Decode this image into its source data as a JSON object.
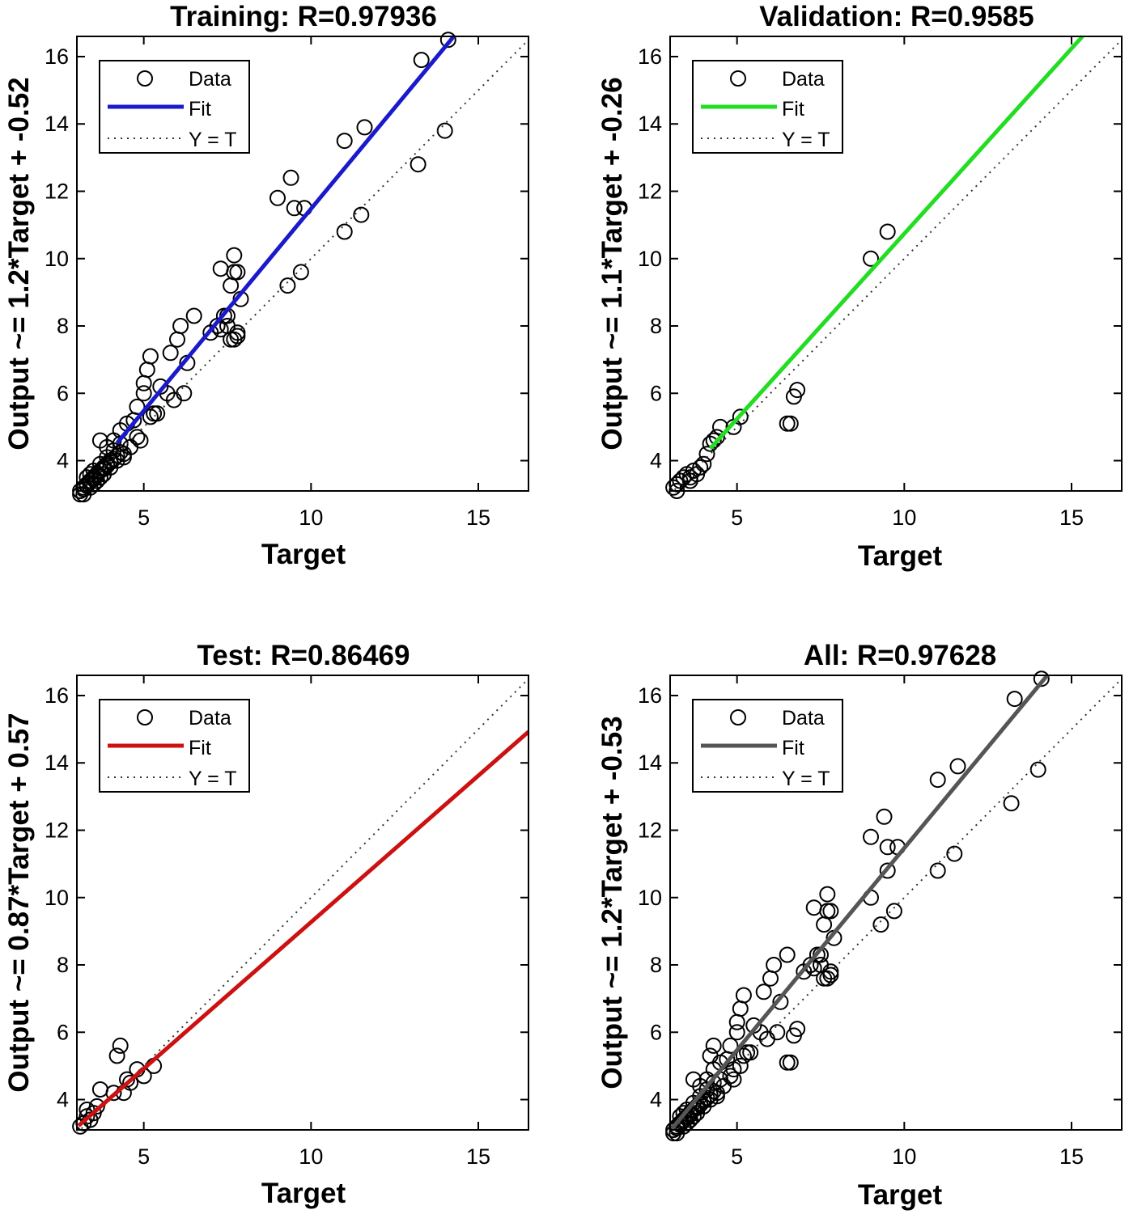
{
  "chart_data": [
    {
      "type": "scatter",
      "title": "Training: R=0.97936",
      "xlabel": "Target",
      "ylabel": "Output ~= 1.2*Target + -0.52",
      "xlim": [
        3,
        16.5
      ],
      "ylim": [
        3.1,
        16.6
      ],
      "xticks": [
        5,
        10,
        15
      ],
      "yticks": [
        4,
        6,
        8,
        10,
        12,
        14,
        16
      ],
      "grid": false,
      "legend": {
        "position": "top-left",
        "entries": [
          "Data",
          "Fit",
          "Y = T"
        ]
      },
      "fit": {
        "slope": 1.2,
        "intercept": -0.52,
        "color": "#1a1acc",
        "x_start": 4.2,
        "x_end": 14.5
      },
      "series": [
        {
          "name": "Data",
          "x": [
            3.1,
            3.2,
            3.3,
            3.4,
            3.5,
            3.6,
            3.7,
            3.8,
            3.9,
            4.0,
            3.3,
            3.5,
            3.7,
            3.9,
            4.1,
            4.3,
            3.6,
            3.8,
            4.0,
            4.2,
            4.4,
            3.2,
            3.4,
            3.6,
            3.8,
            3.9,
            4.1,
            4.3,
            3.5,
            3.7,
            3.2,
            3.3,
            3.5,
            3.6,
            3.8,
            3.9,
            4.0,
            4.1,
            4.2,
            4.3,
            3.1,
            3.4,
            3.7,
            4.4,
            4.6,
            4.8,
            4.5,
            4.7,
            4.9,
            5.0,
            5.2,
            5.1,
            4.8,
            5.0,
            5.2,
            5.3,
            5.5,
            5.8,
            6.0,
            6.1,
            6.2,
            6.3,
            6.5,
            5.9,
            5.7,
            5.4,
            7.0,
            7.2,
            7.3,
            7.4,
            7.5,
            7.6,
            7.7,
            7.8,
            7.9,
            7.3,
            7.5,
            7.7,
            7.6,
            7.8,
            7.7,
            7.8,
            9.0,
            9.4,
            9.5,
            9.8,
            9.3,
            9.7,
            11.0,
            11.6,
            13.3,
            14.1,
            13.2,
            14.0,
            11.0,
            11.5
          ],
          "y": [
            3.1,
            3.2,
            3.3,
            3.4,
            3.5,
            3.6,
            3.7,
            3.8,
            3.9,
            4.0,
            3.5,
            3.7,
            3.9,
            4.1,
            4.3,
            4.5,
            3.4,
            3.6,
            3.8,
            4.0,
            4.2,
            3.0,
            3.2,
            3.4,
            3.6,
            4.4,
            4.6,
            4.9,
            3.3,
            3.5,
            3.15,
            3.25,
            3.45,
            3.55,
            3.75,
            3.85,
            3.95,
            4.05,
            4.15,
            4.25,
            3.0,
            3.6,
            4.6,
            4.1,
            4.4,
            4.7,
            5.1,
            5.2,
            4.6,
            6.0,
            5.3,
            6.7,
            5.6,
            6.3,
            7.1,
            5.4,
            6.2,
            7.2,
            7.6,
            8.0,
            6.0,
            6.9,
            8.3,
            5.8,
            6.0,
            5.4,
            7.8,
            8.0,
            9.7,
            8.3,
            8.0,
            9.2,
            10.1,
            9.6,
            8.8,
            7.9,
            8.3,
            9.6,
            7.6,
            7.8,
            7.6,
            7.7,
            11.8,
            12.4,
            11.5,
            11.5,
            9.2,
            9.6,
            13.5,
            13.9,
            15.9,
            16.5,
            12.8,
            13.8,
            10.8,
            11.3
          ]
        }
      ]
    },
    {
      "type": "scatter",
      "title": "Validation: R=0.9585",
      "xlabel": "Target",
      "ylabel": "Output ~= 1.1*Target + -0.26",
      "xlim": [
        3,
        16.5
      ],
      "ylim": [
        3.1,
        16.6
      ],
      "xticks": [
        5,
        10,
        15
      ],
      "yticks": [
        4,
        6,
        8,
        10,
        12,
        14,
        16
      ],
      "grid": false,
      "legend": {
        "position": "top-left",
        "entries": [
          "Data",
          "Fit",
          "Y = T"
        ]
      },
      "fit": {
        "slope": 1.1,
        "intercept": -0.26,
        "color": "#22dd22",
        "x_start": 4.2,
        "x_end": 16.5
      },
      "series": [
        {
          "name": "Data",
          "x": [
            3.1,
            3.2,
            3.3,
            3.4,
            3.5,
            3.6,
            3.7,
            3.8,
            3.9,
            4.0,
            4.1,
            4.2,
            4.3,
            4.4,
            4.5,
            4.9,
            5.1,
            6.5,
            6.6,
            6.7,
            6.8,
            9.0,
            9.5,
            3.2,
            3.6
          ],
          "y": [
            3.2,
            3.3,
            3.4,
            3.5,
            3.6,
            3.5,
            3.7,
            3.6,
            3.8,
            3.9,
            4.2,
            4.5,
            4.6,
            4.7,
            5.0,
            5.0,
            5.3,
            5.1,
            5.1,
            5.9,
            6.1,
            10.0,
            10.8,
            3.1,
            3.4
          ]
        }
      ]
    },
    {
      "type": "scatter",
      "title": "Test: R=0.86469",
      "xlabel": "Target",
      "ylabel": "Output ~= 0.87*Target + 0.57",
      "xlim": [
        3,
        16.5
      ],
      "ylim": [
        3.1,
        16.6
      ],
      "xticks": [
        5,
        10,
        15
      ],
      "yticks": [
        4,
        6,
        8,
        10,
        12,
        14,
        16
      ],
      "grid": false,
      "legend": {
        "position": "top-left",
        "entries": [
          "Data",
          "Fit",
          "Y = T"
        ]
      },
      "fit": {
        "slope": 0.87,
        "intercept": 0.57,
        "color": "#cc1111",
        "x_start": 3.05,
        "x_end": 16.5
      },
      "series": [
        {
          "name": "Data",
          "x": [
            3.1,
            3.2,
            3.3,
            3.4,
            3.5,
            3.6,
            3.7,
            4.2,
            4.3,
            4.1,
            4.5,
            4.6,
            4.8,
            5.0,
            5.3,
            4.4,
            3.3
          ],
          "y": [
            3.2,
            3.3,
            3.5,
            3.4,
            3.6,
            3.8,
            4.3,
            5.3,
            5.6,
            4.2,
            4.6,
            4.5,
            4.9,
            4.7,
            5.0,
            4.2,
            3.7
          ]
        }
      ]
    },
    {
      "type": "scatter",
      "title": "All: R=0.97628",
      "xlabel": "Target",
      "ylabel": "Output ~= 1.2*Target + -0.53",
      "xlim": [
        3,
        16.5
      ],
      "ylim": [
        3.1,
        16.6
      ],
      "xticks": [
        5,
        10,
        15
      ],
      "yticks": [
        4,
        6,
        8,
        10,
        12,
        14,
        16
      ],
      "grid": false,
      "legend": {
        "position": "top-left",
        "entries": [
          "Data",
          "Fit",
          "Y = T"
        ]
      },
      "fit": {
        "slope": 1.2,
        "intercept": -0.53,
        "color": "#555555",
        "x_start": 3.05,
        "x_end": 14.5
      },
      "series": [
        {
          "name": "Data",
          "x": [
            3.1,
            3.2,
            3.3,
            3.4,
            3.5,
            3.6,
            3.7,
            3.8,
            3.9,
            4.0,
            3.3,
            3.5,
            3.7,
            3.9,
            4.1,
            4.3,
            3.6,
            3.8,
            4.0,
            4.2,
            4.4,
            3.2,
            3.4,
            3.6,
            3.8,
            3.9,
            4.1,
            4.3,
            3.5,
            3.7,
            3.2,
            3.3,
            3.5,
            3.6,
            3.8,
            3.9,
            4.0,
            4.1,
            4.2,
            4.3,
            3.1,
            3.4,
            3.7,
            4.4,
            4.6,
            4.8,
            4.5,
            4.7,
            4.9,
            5.0,
            5.2,
            5.1,
            4.8,
            5.0,
            5.2,
            5.3,
            5.5,
            5.8,
            6.0,
            6.1,
            6.2,
            6.3,
            6.5,
            5.9,
            5.7,
            5.4,
            7.0,
            7.2,
            7.3,
            7.4,
            7.5,
            7.6,
            7.7,
            7.8,
            7.9,
            7.3,
            7.5,
            7.7,
            7.6,
            7.8,
            7.7,
            7.8,
            9.0,
            9.4,
            9.5,
            9.8,
            9.3,
            9.7,
            11.0,
            11.6,
            13.3,
            14.1,
            13.2,
            14.0,
            11.0,
            11.5,
            6.5,
            6.6,
            6.7,
            6.8,
            9.0,
            9.5,
            4.2,
            4.3,
            4.5,
            4.9,
            5.1
          ],
          "y": [
            3.1,
            3.2,
            3.3,
            3.4,
            3.5,
            3.6,
            3.7,
            3.8,
            3.9,
            4.0,
            3.5,
            3.7,
            3.9,
            4.1,
            4.3,
            4.5,
            3.4,
            3.6,
            3.8,
            4.0,
            4.2,
            3.0,
            3.2,
            3.4,
            3.6,
            4.4,
            4.6,
            4.9,
            3.3,
            3.5,
            3.15,
            3.25,
            3.45,
            3.55,
            3.75,
            3.85,
            3.95,
            4.05,
            4.15,
            4.25,
            3.0,
            3.6,
            4.6,
            4.1,
            4.4,
            4.7,
            5.1,
            5.2,
            4.6,
            6.0,
            5.3,
            6.7,
            5.6,
            6.3,
            7.1,
            5.4,
            6.2,
            7.2,
            7.6,
            8.0,
            6.0,
            6.9,
            8.3,
            5.8,
            6.0,
            5.4,
            7.8,
            8.0,
            9.7,
            8.3,
            8.0,
            9.2,
            10.1,
            9.6,
            8.8,
            7.9,
            8.3,
            9.6,
            7.6,
            7.8,
            7.6,
            7.7,
            11.8,
            12.4,
            11.5,
            11.5,
            9.2,
            9.6,
            13.5,
            13.9,
            15.9,
            16.5,
            12.8,
            13.8,
            10.8,
            11.3,
            5.1,
            5.1,
            5.9,
            6.1,
            10.0,
            10.8,
            5.3,
            5.6,
            4.6,
            4.9,
            5.0
          ]
        }
      ]
    }
  ]
}
